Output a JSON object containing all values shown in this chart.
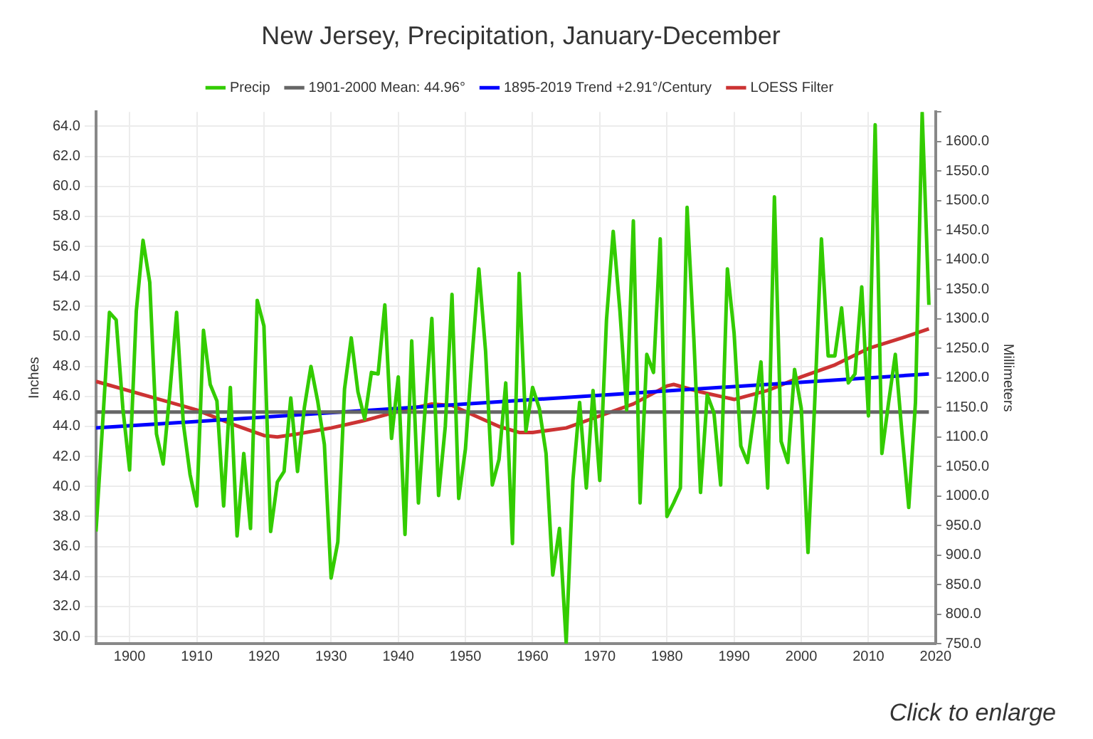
{
  "chart_data": {
    "type": "line",
    "title": "New Jersey, Precipitation, January-December",
    "ylabel": "Inches",
    "y2label": "Millimeters",
    "x": [
      1895,
      1896,
      1897,
      1898,
      1899,
      1900,
      1901,
      1902,
      1903,
      1904,
      1905,
      1906,
      1907,
      1908,
      1909,
      1910,
      1911,
      1912,
      1913,
      1914,
      1915,
      1916,
      1917,
      1918,
      1919,
      1920,
      1921,
      1922,
      1923,
      1924,
      1925,
      1926,
      1927,
      1928,
      1929,
      1930,
      1931,
      1932,
      1933,
      1934,
      1935,
      1936,
      1937,
      1938,
      1939,
      1940,
      1941,
      1942,
      1943,
      1944,
      1945,
      1946,
      1947,
      1948,
      1949,
      1950,
      1951,
      1952,
      1953,
      1954,
      1955,
      1956,
      1957,
      1958,
      1959,
      1960,
      1961,
      1962,
      1963,
      1964,
      1965,
      1966,
      1967,
      1968,
      1969,
      1970,
      1971,
      1972,
      1973,
      1974,
      1975,
      1976,
      1977,
      1978,
      1979,
      1980,
      1981,
      1982,
      1983,
      1984,
      1985,
      1986,
      1987,
      1988,
      1989,
      1990,
      1991,
      1992,
      1993,
      1994,
      1995,
      1996,
      1997,
      1998,
      1999,
      2000,
      2001,
      2002,
      2003,
      2004,
      2005,
      2006,
      2007,
      2008,
      2009,
      2010,
      2011,
      2012,
      2013,
      2014,
      2015,
      2016,
      2017,
      2018,
      2019
    ],
    "series": [
      {
        "name": "Precip",
        "color": "#33cc00",
        "values": [
          37.0,
          44.3,
          51.6,
          51.1,
          45.2,
          41.1,
          51.7,
          56.4,
          53.6,
          43.5,
          41.5,
          46.3,
          51.6,
          44.2,
          40.8,
          38.7,
          50.4,
          46.8,
          45.7,
          38.7,
          46.6,
          36.7,
          42.2,
          37.2,
          52.4,
          50.7,
          37.0,
          40.3,
          41.0,
          45.9,
          41.0,
          45.2,
          48.0,
          45.7,
          42.8,
          33.9,
          36.3,
          46.5,
          49.9,
          46.3,
          44.5,
          47.6,
          47.5,
          52.1,
          43.2,
          47.3,
          36.8,
          49.7,
          38.9,
          45.2,
          51.2,
          39.4,
          44.0,
          52.8,
          39.2,
          42.5,
          48.7,
          54.5,
          49.0,
          40.1,
          41.8,
          46.9,
          36.2,
          54.2,
          43.7,
          46.6,
          45.2,
          42.2,
          34.1,
          37.2,
          29.6,
          40.4,
          45.6,
          39.9,
          46.4,
          40.4,
          51.1,
          57.0,
          51.7,
          45.1,
          57.7,
          38.9,
          48.8,
          47.6,
          56.5,
          38.0,
          38.9,
          39.9,
          58.6,
          49.9,
          39.6,
          46.1,
          44.9,
          40.1,
          54.5,
          50.2,
          42.7,
          41.6,
          44.9,
          48.3,
          39.9,
          59.3,
          43.0,
          41.6,
          47.8,
          45.2,
          35.6,
          45.6,
          56.5,
          48.7,
          48.7,
          51.9,
          46.9,
          47.5,
          53.3,
          44.7,
          64.1,
          42.2,
          45.6,
          48.8,
          43.5,
          38.6,
          45.6,
          64.9,
          52.1
        ]
      },
      {
        "name": "1901-2000 Mean: 44.96°",
        "color": "#666666",
        "x": [
          1895,
          2019
        ],
        "values": [
          44.96,
          44.96
        ]
      },
      {
        "name": "1895-2019 Trend +2.91°/Century",
        "color": "#0000ff",
        "x": [
          1895,
          2019
        ],
        "values": [
          43.9,
          47.5
        ]
      },
      {
        "name": "LOESS Filter",
        "color": "#cc3333",
        "x": [
          1895,
          1910,
          1915,
          1920,
          1922,
          1925,
          1930,
          1935,
          1940,
          1945,
          1948,
          1950,
          1955,
          1958,
          1960,
          1965,
          1970,
          1975,
          1980,
          1981,
          1985,
          1990,
          1995,
          2000,
          2005,
          2010,
          2015,
          2019
        ],
        "values": [
          47.0,
          45.1,
          44.2,
          43.4,
          43.3,
          43.5,
          43.9,
          44.4,
          45.0,
          45.5,
          45.4,
          45.0,
          44.0,
          43.6,
          43.6,
          43.9,
          44.7,
          45.5,
          46.7,
          46.8,
          46.3,
          45.8,
          46.4,
          47.3,
          48.1,
          49.2,
          49.9,
          50.5
        ]
      }
    ],
    "xlim": [
      1895,
      2020
    ],
    "xticks": [
      1900,
      1910,
      1920,
      1930,
      1940,
      1950,
      1960,
      1970,
      1980,
      1990,
      2000,
      2010,
      2020
    ],
    "ylim": [
      29.53,
      64.96
    ],
    "yticks": [
      {
        "value": 30,
        "label": "30.0"
      },
      {
        "value": 32,
        "label": "32.0"
      },
      {
        "value": 34,
        "label": "34.0"
      },
      {
        "value": 36,
        "label": "36.0"
      },
      {
        "value": 38,
        "label": "38.0"
      },
      {
        "value": 40,
        "label": "40.0"
      },
      {
        "value": 42,
        "label": "42.0"
      },
      {
        "value": 44,
        "label": "44.0"
      },
      {
        "value": 46,
        "label": "46.0"
      },
      {
        "value": 48,
        "label": "48.0"
      },
      {
        "value": 50,
        "label": "50.0"
      },
      {
        "value": 52,
        "label": "52.0"
      },
      {
        "value": 54,
        "label": "54.0"
      },
      {
        "value": 56,
        "label": "56.0"
      },
      {
        "value": 58,
        "label": "58.0"
      },
      {
        "value": 60,
        "label": "60.0"
      },
      {
        "value": 62,
        "label": "62.0"
      },
      {
        "value": 64,
        "label": "64.0"
      }
    ],
    "y2lim": [
      750,
      1650
    ],
    "y2ticks": [
      {
        "value": 750,
        "label": "750.0"
      },
      {
        "value": 800,
        "label": "800.0"
      },
      {
        "value": 850,
        "label": "850.0"
      },
      {
        "value": 900,
        "label": "900.0"
      },
      {
        "value": 950,
        "label": "950.0"
      },
      {
        "value": 1000,
        "label": "1000.0"
      },
      {
        "value": 1050,
        "label": "1050.0"
      },
      {
        "value": 1100,
        "label": "1100.0"
      },
      {
        "value": 1150,
        "label": "1150.0"
      },
      {
        "value": 1200,
        "label": "1200.0"
      },
      {
        "value": 1250,
        "label": "1250.0"
      },
      {
        "value": 1300,
        "label": "1300.0"
      },
      {
        "value": 1350,
        "label": "1350.0"
      },
      {
        "value": 1400,
        "label": "1400.0"
      },
      {
        "value": 1450,
        "label": "1450.0"
      },
      {
        "value": 1500,
        "label": "1500.0"
      },
      {
        "value": 1550,
        "label": "1550.0"
      },
      {
        "value": 1600,
        "label": "1600.0"
      },
      {
        "value": 1650,
        "label": null
      }
    ],
    "grid": true,
    "legend": "top",
    "marker": "none",
    "line_style": "solid",
    "annotations": [
      "Click to enlarge"
    ]
  }
}
